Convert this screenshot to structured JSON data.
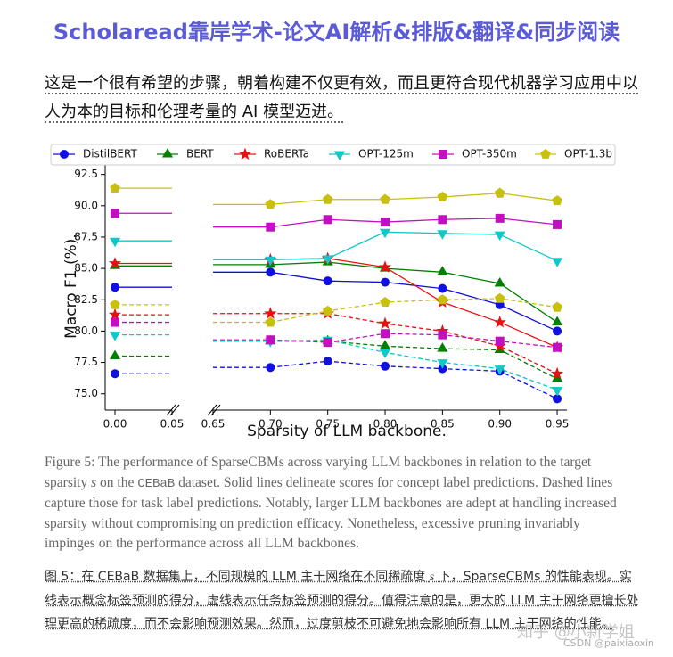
{
  "header": {
    "title": "Scholaread靠岸学术-论文AI解析&排版&翻译&同步阅读"
  },
  "intro": "这是一个很有希望的步骤，朝着构建不仅更有效，而且更符合现代机器学习应用中以人为本的目标和伦理考量的 AI 模型迈进。",
  "chart_data": {
    "type": "line",
    "x": [
      0,
      0.7,
      0.75,
      0.8,
      0.85,
      0.9,
      0.95
    ],
    "series": [
      {
        "name": "DistilBERT",
        "color": "#1010e0",
        "marker": "circle",
        "values": [
          83.5,
          84.7,
          84.0,
          83.9,
          83.4,
          82.1,
          80.0
        ],
        "task_values": [
          76.6,
          77.1,
          77.6,
          77.2,
          77.0,
          76.8,
          74.6
        ]
      },
      {
        "name": "BERT",
        "color": "#008000",
        "marker": "triangle",
        "values": [
          85.2,
          85.3,
          85.5,
          85.0,
          84.7,
          83.8,
          80.7
        ],
        "task_values": [
          78.0,
          79.2,
          79.2,
          78.8,
          78.6,
          78.5,
          76.2
        ]
      },
      {
        "name": "RoBERTa",
        "color": "#e81010",
        "marker": "star",
        "values": [
          85.4,
          85.7,
          85.8,
          85.1,
          82.3,
          80.7,
          78.7
        ],
        "task_values": [
          81.3,
          81.4,
          81.4,
          80.6,
          80.0,
          78.8,
          76.6
        ]
      },
      {
        "name": "OPT-125m",
        "color": "#10c8c8",
        "marker": "triangle-down",
        "values": [
          87.2,
          85.7,
          85.8,
          87.9,
          87.8,
          87.7,
          85.6
        ],
        "task_values": [
          79.7,
          79.2,
          79.3,
          78.3,
          77.5,
          77.0,
          75.3
        ]
      },
      {
        "name": "OPT-350m",
        "color": "#c010c0",
        "marker": "square",
        "values": [
          89.4,
          88.3,
          88.9,
          88.7,
          88.9,
          89.0,
          88.5
        ],
        "task_values": [
          80.7,
          79.3,
          79.1,
          79.8,
          79.7,
          79.2,
          78.7
        ]
      },
      {
        "name": "OPT-1.3b",
        "color": "#c8c010",
        "marker": "pentagon",
        "values": [
          91.4,
          90.1,
          90.5,
          90.5,
          90.7,
          91.0,
          90.4
        ],
        "task_values": [
          82.1,
          80.7,
          81.6,
          82.3,
          82.5,
          82.6,
          81.9
        ]
      }
    ],
    "panels": [
      {
        "xlim": [
          -0.0086,
          0.05
        ],
        "xticks": [
          {
            "value": 0,
            "label": "0.00"
          },
          {
            "value": 0.05,
            "label": "0.05"
          }
        ]
      },
      {
        "xlim": [
          0.65,
          0.9585
        ],
        "xticks": [
          {
            "value": 0.65,
            "label": "0.65"
          },
          {
            "value": 0.7,
            "label": "0.70"
          },
          {
            "value": 0.75,
            "label": "0.75"
          },
          {
            "value": 0.8,
            "label": "0.80"
          },
          {
            "value": 0.85,
            "label": "0.85"
          },
          {
            "value": 0.9,
            "label": "0.90"
          },
          {
            "value": 0.95,
            "label": "0.95"
          }
        ]
      }
    ],
    "ylim": [
      73.7,
      93.4
    ],
    "yticks": [
      {
        "value": 75,
        "label": "75.0"
      },
      {
        "value": 77.5,
        "label": "77.5"
      },
      {
        "value": 80,
        "label": "80.0"
      },
      {
        "value": 82.5,
        "label": "82.5"
      },
      {
        "value": 85,
        "label": "85.0"
      },
      {
        "value": 87.5,
        "label": "87.5"
      },
      {
        "value": 90,
        "label": "90.0"
      },
      {
        "value": 92.5,
        "label": "92.5"
      }
    ],
    "xlabel": "Sparsity of LLM backbone.",
    "ylabel": "Macro F1 (%).",
    "legend": "top"
  },
  "caption": [
    "Figure 5: The performance of SparseCBMs across varying LLM backbones in relation to the target sparsity ",
    "s",
    " on the ",
    "CEBaB",
    " dataset. Solid lines delineate scores for concept label predictions. Dashed lines capture those for task label predictions. Notably, larger LLM backbones are adept at handling increased sparsity without compromising on prediction efficacy. Nonetheless, excessive pruning invariably impinges on the performance across all LLM backbones."
  ],
  "caption_zh": [
    "图 5：在 CEBaB 数据集上，不同规模的 LLM 主干网络在不同稀疏度 ",
    "s",
    " 下，SparseCBMs 的性能表现。实线表示概念标签预测的得分，虚线表示任务标签预测的得分。值得注意的是，更大的 LLM 主干网络更擅长处理更高的稀疏度，而不会影响预测效果。然而，过度剪枝不可避免地会影响所有 LLM 主干网络的性能。"
  ],
  "watermark": [
    "知乎 @小新学姐",
    "CSDN @paixiaoxin"
  ]
}
